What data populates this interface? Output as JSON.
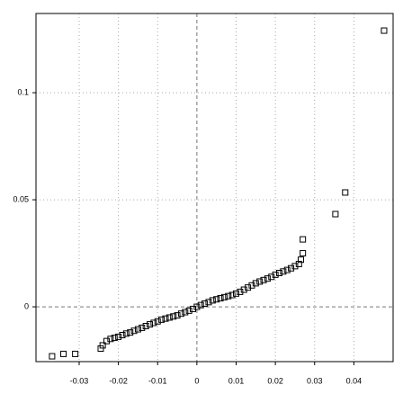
{
  "chart_data": {
    "type": "scatter",
    "marker": "square",
    "color": "#000000",
    "grid": true,
    "xlim": [
      -0.041,
      0.05
    ],
    "ylim": [
      -0.0256,
      0.137
    ],
    "xticks": [
      -0.03,
      -0.02,
      -0.01,
      0,
      0.01,
      0.02,
      0.03,
      0.04
    ],
    "yticks": [
      0,
      0.05,
      0.1
    ],
    "x": [
      -0.0369,
      -0.034,
      -0.031,
      -0.0245,
      -0.024,
      -0.023,
      -0.022,
      -0.021,
      -0.02,
      -0.019,
      -0.018,
      -0.017,
      -0.016,
      -0.015,
      -0.014,
      -0.013,
      -0.012,
      -0.011,
      -0.01,
      -0.009,
      -0.008,
      -0.007,
      -0.006,
      -0.005,
      -0.004,
      -0.003,
      -0.002,
      -0.001,
      0,
      0.001,
      0.002,
      0.003,
      0.004,
      0.005,
      0.006,
      0.007,
      0.008,
      0.009,
      0.01,
      0.011,
      0.012,
      0.013,
      0.014,
      0.015,
      0.016,
      0.017,
      0.018,
      0.019,
      0.02,
      0.021,
      0.022,
      0.023,
      0.024,
      0.025,
      0.026,
      0.0265,
      0.027,
      0.027,
      0.0353,
      0.0378,
      0.0477
    ],
    "values": [
      -0.0231,
      -0.022,
      -0.022,
      -0.0195,
      -0.018,
      -0.016,
      -0.015,
      -0.0145,
      -0.014,
      -0.0132,
      -0.0125,
      -0.012,
      -0.0112,
      -0.0105,
      -0.0098,
      -0.009,
      -0.0082,
      -0.0075,
      -0.0068,
      -0.006,
      -0.0055,
      -0.005,
      -0.0045,
      -0.004,
      -0.0032,
      -0.0025,
      -0.0018,
      -0.001,
      0,
      0.0008,
      0.0015,
      0.0022,
      0.003,
      0.0035,
      0.004,
      0.0045,
      0.005,
      0.0055,
      0.0062,
      0.007,
      0.008,
      0.009,
      0.01,
      0.011,
      0.0118,
      0.0125,
      0.0132,
      0.014,
      0.015,
      0.0158,
      0.0165,
      0.0172,
      0.018,
      0.019,
      0.02,
      0.022,
      0.025,
      0.0315,
      0.0433,
      0.0534,
      0.129
    ]
  }
}
